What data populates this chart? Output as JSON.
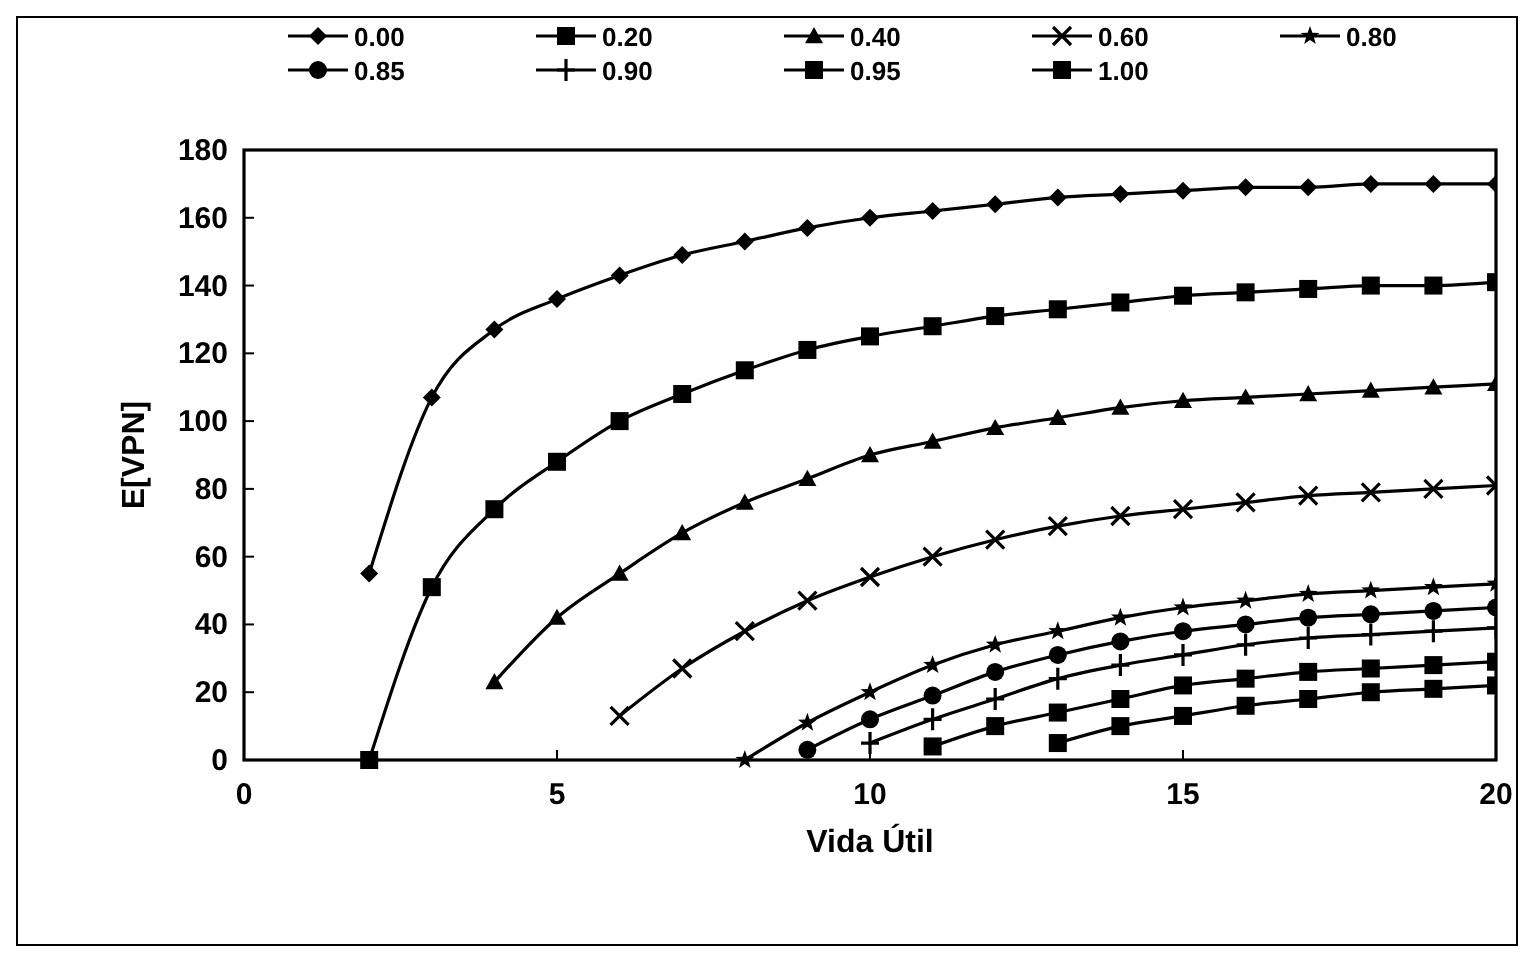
{
  "chart_data": {
    "type": "line",
    "xlabel": "Vida Útil",
    "ylabel": "E[VPN]",
    "xlim": [
      0,
      20
    ],
    "xticks": [
      0,
      5,
      10,
      15,
      20
    ],
    "ylim": [
      0,
      180
    ],
    "yticks": [
      0,
      20,
      40,
      60,
      80,
      100,
      120,
      140,
      160,
      180
    ],
    "legend": "top",
    "grid": false,
    "line_style": "solid",
    "series": [
      {
        "name": "0.00",
        "color": "#000000",
        "marker": "diamond",
        "x": [
          2,
          3,
          4,
          5,
          6,
          7,
          8,
          9,
          10,
          11,
          12,
          13,
          14,
          15,
          16,
          17,
          18,
          19,
          20
        ],
        "values": [
          55,
          107,
          127,
          136,
          143,
          149,
          153,
          157,
          160,
          162,
          164,
          166,
          167,
          168,
          169,
          169,
          170,
          170,
          170
        ]
      },
      {
        "name": "0.20",
        "color": "#000000",
        "marker": "square",
        "x": [
          2,
          3,
          4,
          5,
          6,
          7,
          8,
          9,
          10,
          11,
          12,
          13,
          14,
          15,
          16,
          17,
          18,
          19,
          20
        ],
        "values": [
          0,
          51,
          74,
          88,
          100,
          108,
          115,
          121,
          125,
          128,
          131,
          133,
          135,
          137,
          138,
          139,
          140,
          140,
          141
        ]
      },
      {
        "name": "0.40",
        "color": "#000000",
        "marker": "triangle",
        "x": [
          4,
          5,
          6,
          7,
          8,
          9,
          10,
          11,
          12,
          13,
          14,
          15,
          16,
          17,
          18,
          19,
          20
        ],
        "values": [
          23,
          42,
          55,
          67,
          76,
          83,
          90,
          94,
          98,
          101,
          104,
          106,
          107,
          108,
          109,
          110,
          111
        ]
      },
      {
        "name": "0.60",
        "color": "#000000",
        "marker": "cross",
        "x": [
          6,
          7,
          8,
          9,
          10,
          11,
          12,
          13,
          14,
          15,
          16,
          17,
          18,
          19,
          20
        ],
        "values": [
          13,
          27,
          38,
          47,
          54,
          60,
          65,
          69,
          72,
          74,
          76,
          78,
          79,
          80,
          81
        ]
      },
      {
        "name": "0.80",
        "color": "#000000",
        "marker": "star",
        "x": [
          8,
          9,
          10,
          11,
          12,
          13,
          14,
          15,
          16,
          17,
          18,
          19,
          20
        ],
        "values": [
          0,
          11,
          20,
          28,
          34,
          38,
          42,
          45,
          47,
          49,
          50,
          51,
          52
        ]
      },
      {
        "name": "0.85",
        "color": "#000000",
        "marker": "circle",
        "x": [
          9,
          10,
          11,
          12,
          13,
          14,
          15,
          16,
          17,
          18,
          19,
          20
        ],
        "values": [
          3,
          12,
          19,
          26,
          31,
          35,
          38,
          40,
          42,
          43,
          44,
          45
        ]
      },
      {
        "name": "0.90",
        "color": "#000000",
        "marker": "plus",
        "x": [
          10,
          11,
          12,
          13,
          14,
          15,
          16,
          17,
          18,
          19,
          20
        ],
        "values": [
          5,
          12,
          18,
          24,
          28,
          31,
          34,
          36,
          37,
          38,
          39
        ]
      },
      {
        "name": "0.95",
        "color": "#000000",
        "marker": "square",
        "x": [
          11,
          12,
          13,
          14,
          15,
          16,
          17,
          18,
          19,
          20
        ],
        "values": [
          4,
          10,
          14,
          18,
          22,
          24,
          26,
          27,
          28,
          29
        ]
      },
      {
        "name": "1.00",
        "color": "#000000",
        "marker": "square",
        "x": [
          13,
          14,
          15,
          16,
          17,
          18,
          19,
          20
        ],
        "values": [
          5,
          10,
          13,
          16,
          18,
          20,
          21,
          22
        ]
      }
    ]
  }
}
